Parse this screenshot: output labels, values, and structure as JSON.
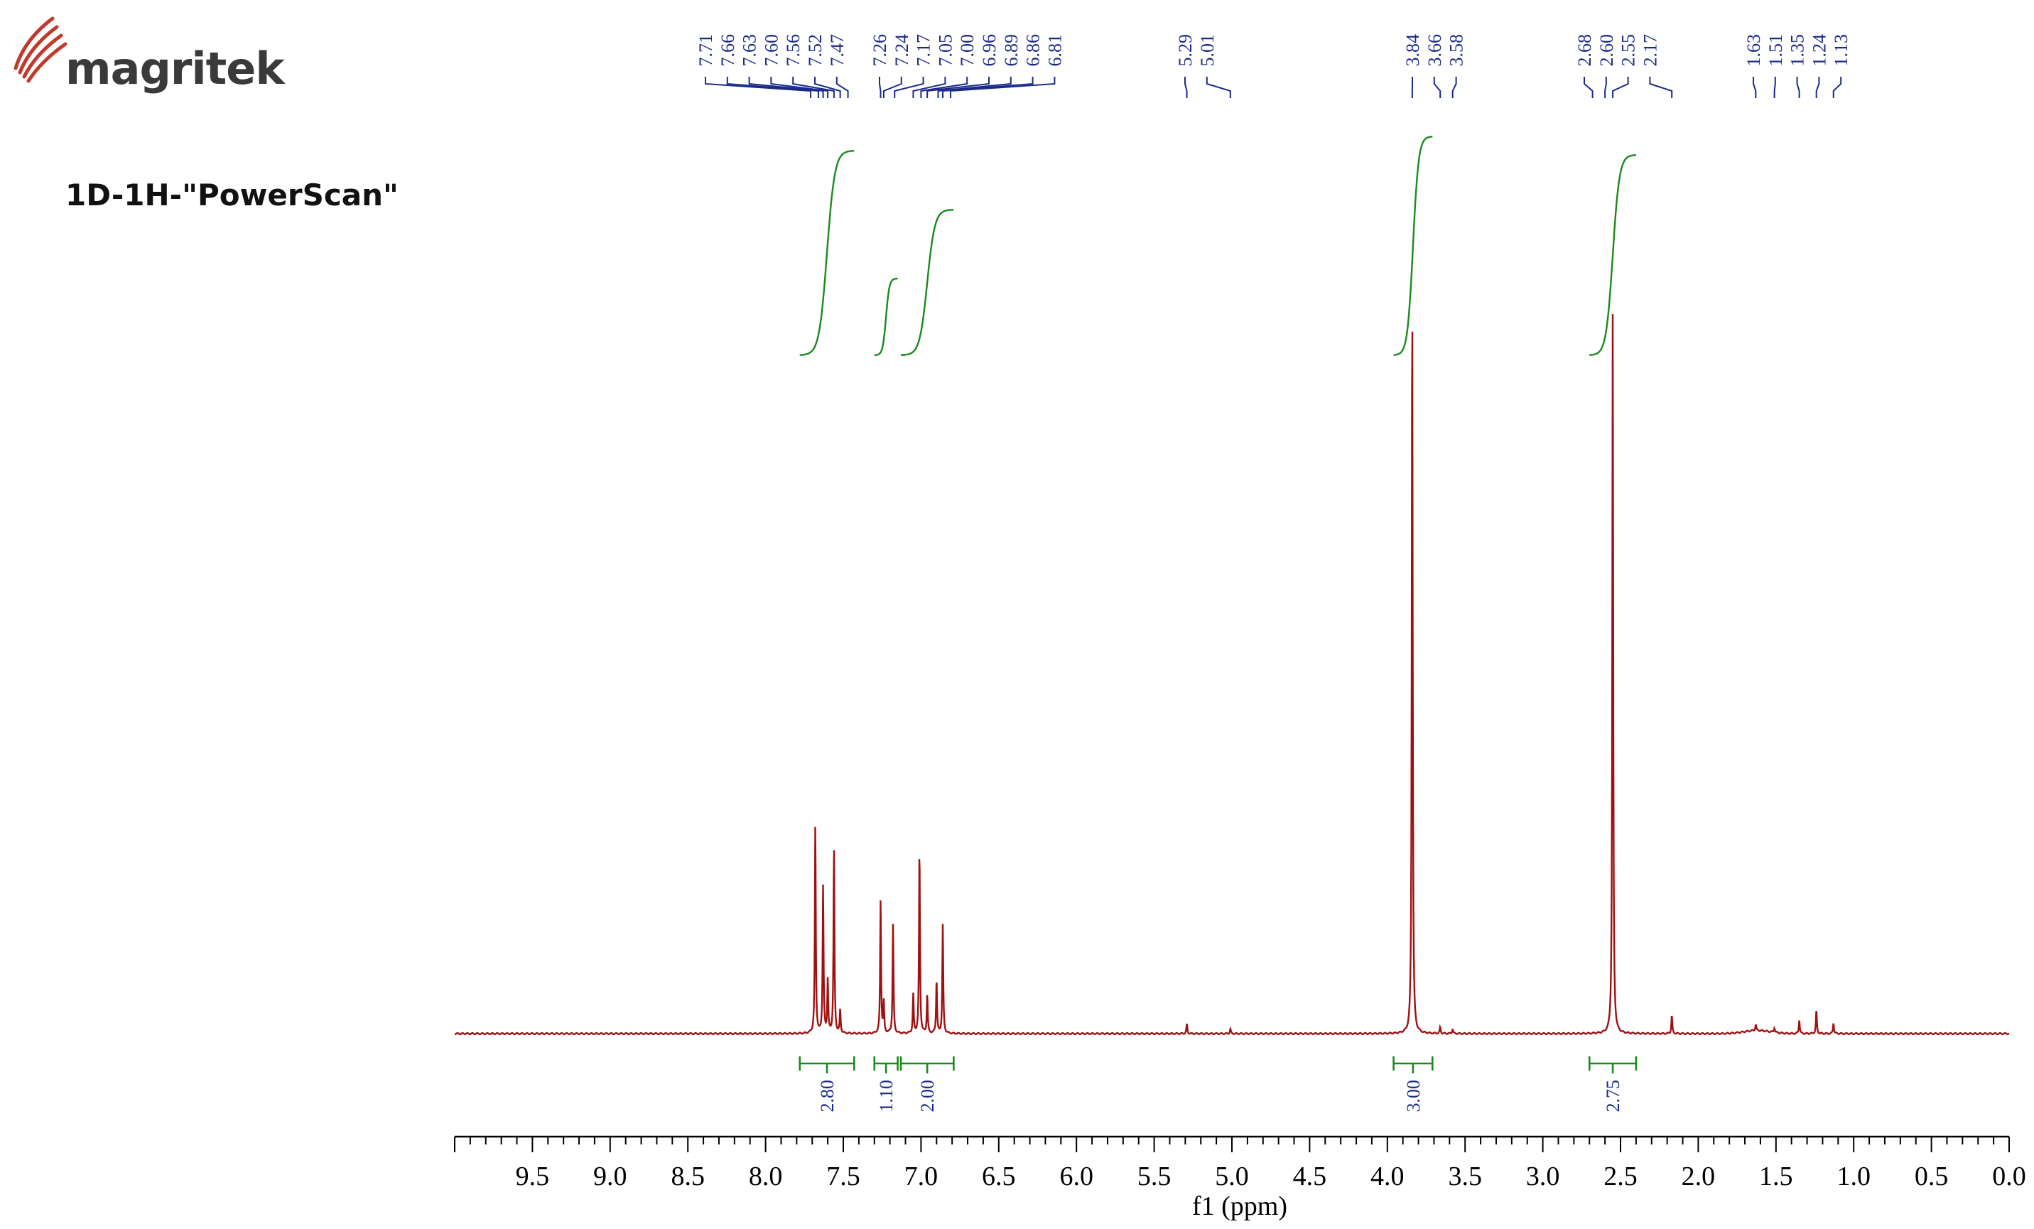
{
  "header": {
    "brand": "magritek",
    "experiment_title": "1D-1H-\"PowerScan\""
  },
  "colors": {
    "spectrum": "#a01010",
    "integral": "#1a8a1a",
    "peak_label": "#1a2a8a",
    "axis": "#000000",
    "logo_arcs": "#c0392b"
  },
  "chart_data": {
    "type": "line",
    "title": "",
    "xlabel": "f1 (ppm)",
    "ylabel": "",
    "xlim": [
      10.0,
      0.0
    ],
    "x_reversed": true,
    "ylim": [
      0,
      1.0
    ],
    "grid": false,
    "x_ticks": [
      "9.5",
      "9.0",
      "8.5",
      "8.0",
      "7.5",
      "7.0",
      "6.5",
      "6.0",
      "5.5",
      "5.0",
      "4.5",
      "4.0",
      "3.5",
      "3.0",
      "2.5",
      "2.0",
      "1.5",
      "1.0",
      "0.5",
      "0.0"
    ],
    "peak_labels": [
      "7.71",
      "7.66",
      "7.63",
      "7.60",
      "7.56",
      "7.52",
      "7.47",
      "7.26",
      "7.24",
      "7.17",
      "7.05",
      "7.00",
      "6.96",
      "6.89",
      "6.86",
      "6.81",
      "5.29",
      "5.01",
      "3.84",
      "3.66",
      "3.58",
      "2.68",
      "2.60",
      "2.55",
      "2.17",
      "1.63",
      "1.51",
      "1.35",
      "1.24",
      "1.13"
    ],
    "peaks": [
      {
        "ppm": 7.68,
        "height": 0.27
      },
      {
        "ppm": 7.63,
        "height": 0.19
      },
      {
        "ppm": 7.6,
        "height": 0.07
      },
      {
        "ppm": 7.56,
        "height": 0.24
      },
      {
        "ppm": 7.52,
        "height": 0.03
      },
      {
        "ppm": 7.26,
        "height": 0.17
      },
      {
        "ppm": 7.24,
        "height": 0.04
      },
      {
        "ppm": 7.18,
        "height": 0.14
      },
      {
        "ppm": 7.05,
        "height": 0.05
      },
      {
        "ppm": 7.01,
        "height": 0.24
      },
      {
        "ppm": 6.96,
        "height": 0.05
      },
      {
        "ppm": 6.9,
        "height": 0.07
      },
      {
        "ppm": 6.86,
        "height": 0.14
      },
      {
        "ppm": 5.29,
        "height": 0.012
      },
      {
        "ppm": 5.01,
        "height": 0.006
      },
      {
        "ppm": 3.84,
        "height": 0.96
      },
      {
        "ppm": 3.66,
        "height": 0.008
      },
      {
        "ppm": 3.58,
        "height": 0.006
      },
      {
        "ppm": 2.55,
        "height": 0.93
      },
      {
        "ppm": 2.17,
        "height": 0.024
      },
      {
        "ppm": 1.63,
        "height": 0.008
      },
      {
        "ppm": 1.51,
        "height": 0.006
      },
      {
        "ppm": 1.35,
        "height": 0.018
      },
      {
        "ppm": 1.24,
        "height": 0.03
      },
      {
        "ppm": 1.13,
        "height": 0.014
      }
    ],
    "integrals": [
      {
        "label": "2.80",
        "from_ppm": 7.78,
        "to_ppm": 7.43
      },
      {
        "label": "1.10",
        "from_ppm": 7.3,
        "to_ppm": 7.15
      },
      {
        "label": "2.00",
        "from_ppm": 7.13,
        "to_ppm": 6.79
      },
      {
        "label": "3.00",
        "from_ppm": 3.96,
        "to_ppm": 3.71
      },
      {
        "label": "2.75",
        "from_ppm": 2.7,
        "to_ppm": 2.4
      }
    ]
  }
}
